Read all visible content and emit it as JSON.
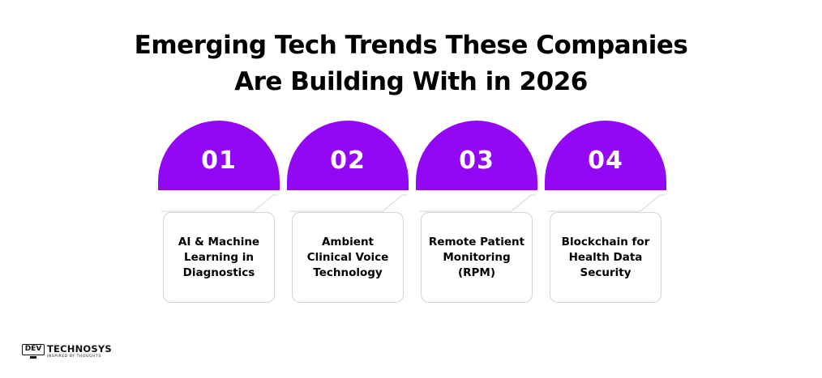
{
  "title": {
    "line1": "Emerging Tech Trends These Companies",
    "line2": "Are Building With in 2026"
  },
  "colors": {
    "accent": "#9208f5",
    "card_border": "#d4d4d4",
    "text": "#000000"
  },
  "steps": [
    {
      "number": "01",
      "label": "AI & Machine Learning in Diagnostics"
    },
    {
      "number": "02",
      "label": "Ambient Clinical Voice Technology"
    },
    {
      "number": "03",
      "label": "Remote Patient Monitoring (RPM)"
    },
    {
      "number": "04",
      "label": "Blockchain for Health Data Security"
    }
  ],
  "logo": {
    "mark": "DEV",
    "brand": "TECHNOSYS",
    "tagline": "INSPIRED BY THOUGHTS"
  }
}
